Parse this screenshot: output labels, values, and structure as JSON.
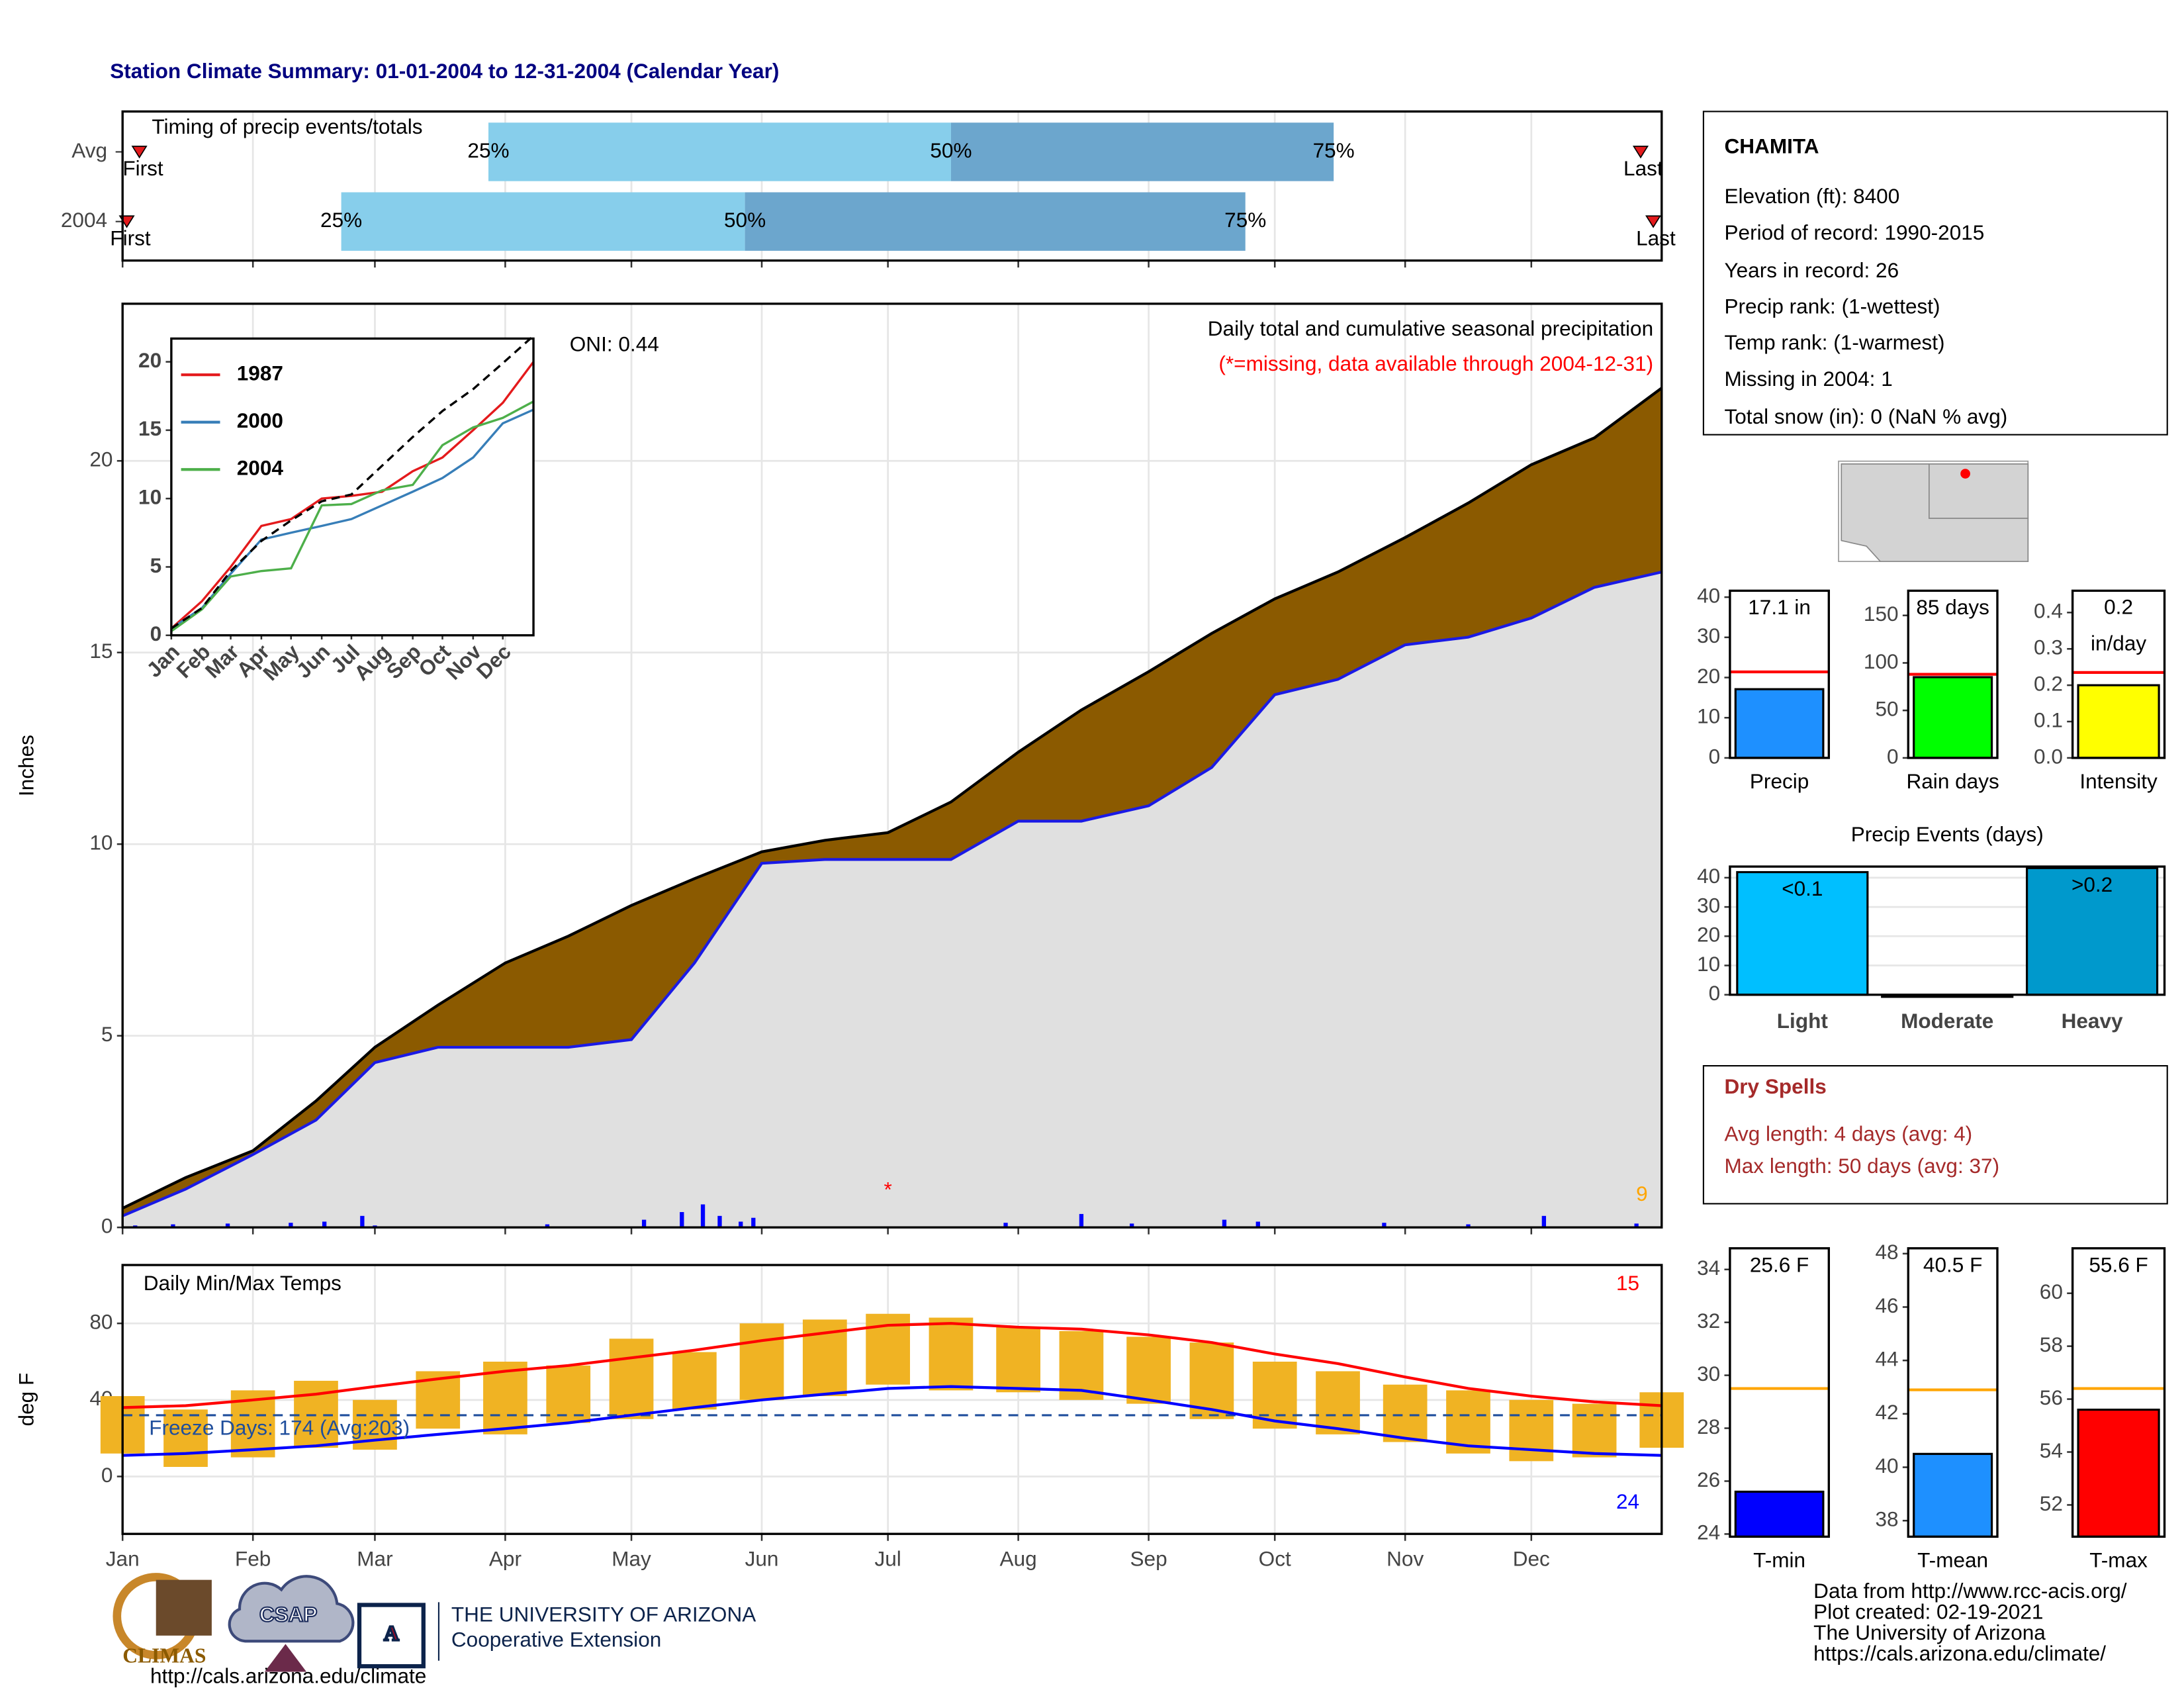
{
  "title": "Station Climate Summary: 01-01-2004 to 12-31-2004 (Calendar Year)",
  "chart_data": [
    {
      "type": "timing",
      "title": "Timing of precip events/totals",
      "categories": [
        "Avg",
        "2004"
      ],
      "series": [
        {
          "name": "25%",
          "values": [
            87,
            52
          ]
        },
        {
          "name": "50%",
          "values": [
            197,
            148
          ]
        },
        {
          "name": "75%",
          "values": [
            288,
            267
          ]
        }
      ],
      "segment_colors": [
        "#87ceeb",
        "#6ca6cd"
      ],
      "first": {
        "label": "First",
        "values": [
          4,
          1
        ]
      },
      "last": {
        "label": "Last",
        "values": [
          361,
          364
        ]
      },
      "marker_color": "#e31a1c",
      "xlim": [
        0,
        366
      ],
      "xticks": [
        0,
        31,
        60,
        91,
        121,
        152,
        182,
        213,
        244,
        274,
        305,
        335
      ],
      "grid": true
    },
    {
      "type": "area",
      "title": "Daily total and cumulative seasonal precipitation",
      "subtitle": "(*=missing, data available through 2004-12-31)",
      "ylabel": "Inches",
      "annotation": "ONI: 0.44",
      "count_label": "9",
      "count_color": "#ffa500",
      "missing_marker": {
        "label": "*",
        "x": 182,
        "y": 0.95
      },
      "x": [
        0,
        15,
        31,
        46,
        60,
        75,
        91,
        106,
        121,
        136,
        152,
        167,
        182,
        197,
        213,
        228,
        244,
        259,
        274,
        289,
        305,
        320,
        335,
        350,
        366
      ],
      "series": [
        {
          "color": "#8b5a00",
          "values": [
            0.5,
            1.3,
            2.0,
            3.3,
            4.7,
            5.8,
            6.9,
            7.6,
            8.4,
            9.1,
            9.8,
            10.1,
            10.3,
            11.1,
            12.4,
            13.5,
            14.5,
            15.5,
            16.4,
            17.1,
            18.0,
            18.9,
            19.9,
            20.6,
            21.9
          ]
        },
        {
          "color": "#1a1ae6",
          "values": [
            0.3,
            1.0,
            1.9,
            2.8,
            4.3,
            4.7,
            4.7,
            4.7,
            4.9,
            6.9,
            9.5,
            9.6,
            9.6,
            9.6,
            10.6,
            10.6,
            11.0,
            12.0,
            13.9,
            14.3,
            15.2,
            15.4,
            15.9,
            16.7,
            17.1
          ]
        }
      ],
      "below_color": "#e0e0e0",
      "daily": {
        "color": "#0000ff",
        "x": [
          3,
          12,
          25,
          40,
          48,
          57,
          60,
          101,
          124,
          133,
          138,
          142,
          147,
          150,
          210,
          228,
          240,
          262,
          270,
          300,
          320,
          338,
          360
        ],
        "values": [
          0.05,
          0.08,
          0.1,
          0.12,
          0.15,
          0.3,
          0.05,
          0.08,
          0.2,
          0.4,
          0.6,
          0.3,
          0.15,
          0.25,
          0.12,
          0.35,
          0.1,
          0.2,
          0.15,
          0.12,
          0.08,
          0.3,
          0.1
        ]
      },
      "xlim": [
        0,
        366
      ],
      "xticks": [
        0,
        31,
        60,
        91,
        121,
        152,
        182,
        213,
        244,
        274,
        305,
        335
      ],
      "ylim": [
        0,
        24.1
      ],
      "yticks": [
        0,
        5,
        10,
        15,
        20
      ],
      "grid": true
    },
    {
      "type": "line",
      "x": [
        0,
        31,
        60,
        91,
        121,
        152,
        182,
        213,
        244,
        274,
        305,
        335,
        366
      ],
      "series": [
        {
          "name": "1987",
          "color": "#e41a1c",
          "values": [
            0.5,
            2.5,
            5,
            8,
            8.5,
            10,
            10.2,
            10.5,
            12,
            13,
            15,
            17,
            20
          ]
        },
        {
          "name": "2000",
          "color": "#377eb8",
          "values": [
            0.5,
            2,
            4.5,
            7,
            7.5,
            8,
            8.5,
            9.5,
            10.5,
            11.5,
            13,
            15.5,
            16.5
          ]
        },
        {
          "name": "2004",
          "color": "#4daf4a",
          "values": [
            0.3,
            1.9,
            4.3,
            4.7,
            4.9,
            9.5,
            9.6,
            10.6,
            11.0,
            13.9,
            15.2,
            15.9,
            17.1
          ]
        }
      ],
      "average": {
        "color": "#000000",
        "values": [
          0.5,
          2.0,
          4.7,
          6.9,
          8.4,
          9.8,
          10.3,
          12.4,
          14.5,
          16.4,
          18.0,
          19.9,
          21.9
        ]
      },
      "xlim": [
        0,
        366
      ],
      "xticks": [
        {
          "value": 0,
          "label": "Jan"
        },
        {
          "value": 31,
          "label": "Feb"
        },
        {
          "value": 60,
          "label": "Mar"
        },
        {
          "value": 91,
          "label": "Apr"
        },
        {
          "value": 121,
          "label": "May"
        },
        {
          "value": 152,
          "label": "Jun"
        },
        {
          "value": 182,
          "label": "Jul"
        },
        {
          "value": 213,
          "label": "Aug"
        },
        {
          "value": 244,
          "label": "Sep"
        },
        {
          "value": 274,
          "label": "Oct"
        },
        {
          "value": 305,
          "label": "Nov"
        },
        {
          "value": 335,
          "label": "Dec"
        }
      ],
      "ylim": [
        0,
        21.7
      ],
      "yticks": [
        0,
        5,
        10,
        15,
        20
      ],
      "grid": false
    },
    {
      "type": "temperature",
      "title": "Daily Min/Max Temps",
      "ylabel": "deg F",
      "count_high": "15",
      "count_low": "24",
      "freeze_label": "Freeze Days: 174 (Avg:203)",
      "freeze_line": 32,
      "x": [
        0,
        15,
        31,
        46,
        60,
        75,
        91,
        106,
        121,
        136,
        152,
        167,
        182,
        197,
        213,
        228,
        244,
        259,
        274,
        289,
        305,
        320,
        335,
        350,
        366
      ],
      "observed": {
        "color": "#f0b323",
        "max": [
          42,
          35,
          45,
          50,
          40,
          55,
          60,
          58,
          72,
          65,
          80,
          82,
          85,
          83,
          78,
          76,
          73,
          70,
          60,
          55,
          48,
          45,
          40,
          38,
          44
        ],
        "min": [
          12,
          5,
          10,
          15,
          14,
          25,
          22,
          28,
          30,
          35,
          40,
          42,
          48,
          45,
          44,
          40,
          38,
          30,
          25,
          22,
          18,
          12,
          8,
          10,
          15
        ]
      },
      "series": [
        {
          "color": "#ff0000",
          "values": [
            36,
            37,
            40,
            43,
            47,
            51,
            55,
            58,
            62,
            66,
            71,
            75,
            79,
            80,
            78,
            77,
            74,
            70,
            64,
            59,
            52,
            46,
            42,
            39,
            37
          ]
        },
        {
          "color": "#0000ff",
          "values": [
            11,
            12,
            14,
            16,
            19,
            22,
            25,
            28,
            32,
            36,
            40,
            43,
            46,
            47,
            46,
            45,
            40,
            35,
            29,
            25,
            20,
            16,
            14,
            12,
            11
          ]
        }
      ],
      "xlim": [
        0,
        366
      ],
      "xticks": [
        {
          "value": 0,
          "label": "Jan"
        },
        {
          "value": 31,
          "label": "Feb"
        },
        {
          "value": 60,
          "label": "Mar"
        },
        {
          "value": 91,
          "label": "Apr"
        },
        {
          "value": 121,
          "label": "May"
        },
        {
          "value": 152,
          "label": "Jun"
        },
        {
          "value": 182,
          "label": "Jul"
        },
        {
          "value": 213,
          "label": "Aug"
        },
        {
          "value": 244,
          "label": "Sep"
        },
        {
          "value": 274,
          "label": "Oct"
        },
        {
          "value": 305,
          "label": "Nov"
        },
        {
          "value": 335,
          "label": "Dec"
        }
      ],
      "ylim": [
        -30,
        110.5
      ],
      "yticks": [
        0,
        40,
        80
      ],
      "grid": true
    },
    {
      "type": "bar",
      "categories": [
        "Precip"
      ],
      "values": [
        17.1
      ],
      "value_labels": [
        "17.1 in"
      ],
      "color": "#1e90ff",
      "avg": 21.4,
      "avg_color": "#ff0000",
      "ylim": [
        0,
        41.6
      ],
      "yticks": [
        0,
        10,
        20,
        30,
        40
      ],
      "grid": false
    },
    {
      "type": "bar",
      "categories": [
        "Rain days"
      ],
      "values": [
        85
      ],
      "value_labels": [
        "85 days"
      ],
      "color": "#00ff00",
      "avg": 88,
      "avg_color": "#ff0000",
      "ylim": [
        0,
        176
      ],
      "yticks": [
        0,
        50,
        100,
        150
      ],
      "grid": false
    },
    {
      "type": "bar",
      "categories": [
        "Intensity"
      ],
      "values": [
        0.2
      ],
      "value_labels": [
        "0.2 in/day"
      ],
      "color": "#ffff00",
      "avg": 0.235,
      "avg_color": "#ff0000",
      "ylim": [
        0,
        0.46
      ],
      "yticks": [
        {
          "value": 0,
          "label": "0.0"
        },
        0.1,
        0.2,
        0.3,
        0.4
      ],
      "grid": false
    },
    {
      "type": "bar",
      "title": "Precip Events (days)",
      "categories": [
        "Light",
        "Moderate",
        "Heavy"
      ],
      "values": [
        41.9,
        0,
        43.3
      ],
      "thresholds": [
        "<0.1",
        null,
        ">0.2"
      ],
      "colors": [
        "#00bfff",
        "#0099cc",
        "#0099cc"
      ],
      "ylim": [
        0,
        43.8
      ],
      "yticks": [
        0,
        10,
        20,
        30,
        40
      ],
      "grid": true
    },
    {
      "type": "bar",
      "categories": [
        "T-min"
      ],
      "values": [
        25.6
      ],
      "value_labels": [
        "25.6 F"
      ],
      "color": "#0000ff",
      "avg": 29.5,
      "avg_color": "#ffa500",
      "ylim": [
        23.9,
        34.8
      ],
      "yticks": [
        24,
        26,
        28,
        30,
        32,
        34
      ],
      "grid": false
    },
    {
      "type": "bar",
      "categories": [
        "T-mean"
      ],
      "values": [
        40.5
      ],
      "value_labels": [
        "40.5 F"
      ],
      "color": "#1e90ff",
      "avg": 42.9,
      "avg_color": "#ffa500",
      "ylim": [
        37.4,
        48.2
      ],
      "yticks": [
        38,
        40,
        42,
        44,
        46,
        48
      ],
      "grid": false
    },
    {
      "type": "bar",
      "categories": [
        "T-max"
      ],
      "values": [
        55.6
      ],
      "value_labels": [
        "55.6 F"
      ],
      "color": "#ff0000",
      "avg": 56.4,
      "avg_color": "#ffa500",
      "ylim": [
        50.8,
        61.7
      ],
      "yticks": [
        52,
        54,
        56,
        58,
        60
      ],
      "grid": false
    }
  ],
  "station": {
    "name": "CHAMITA",
    "lines": [
      "Elevation (ft): 8400",
      "Period of record: 1990-2015",
      "Years in record: 26",
      "Precip rank:  (1-wettest)",
      "Temp rank:  (1-warmest)",
      "Missing in 2004: 1",
      "Total snow (in): 0 (NaN % avg)"
    ]
  },
  "dry_spells": {
    "title": "Dry Spells",
    "lines": [
      "Avg length: 4 days (avg: 4)",
      "Max length: 50 days (avg: 37)"
    ]
  },
  "footer": [
    "Data from http://www.rcc-acis.org/",
    "Plot created: 02-19-2021",
    "The University of Arizona",
    "https://cals.arizona.edu/climate/"
  ],
  "logos": {
    "climas": "CLIMAS",
    "csap": "CSAP",
    "csap_url": "http://cals.arizona.edu/climate",
    "ua_letter": "A",
    "ua_small": "THE UNIVERSITY OF ARIZONA",
    "ua_name": "Cooperative Extension"
  }
}
